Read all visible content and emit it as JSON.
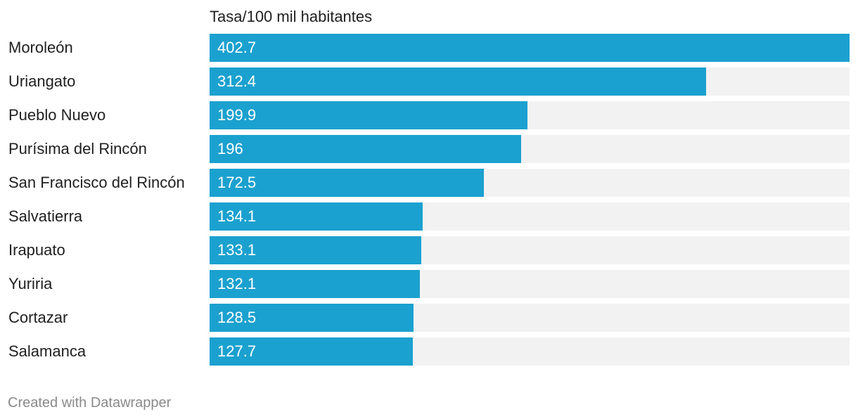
{
  "chart_data": {
    "type": "bar",
    "orientation": "horizontal",
    "title": "Tasa/100 mil habitantes",
    "categories": [
      "Moroleón",
      "Uriangato",
      "Pueblo Nuevo",
      "Purísima del Rincón",
      "San Francisco del Rincón",
      "Salvatierra",
      "Irapuato",
      "Yuriria",
      "Cortazar",
      "Salamanca"
    ],
    "values": [
      402.7,
      312.4,
      199.9,
      196,
      172.5,
      134.1,
      133.1,
      132.1,
      128.5,
      127.7
    ],
    "value_labels": [
      "402.7",
      "312.4",
      "199.9",
      "196",
      "172.5",
      "134.1",
      "133.1",
      "132.1",
      "128.5",
      "127.7"
    ],
    "xlim": [
      0,
      402.7
    ],
    "grid": false,
    "bar_color": "#1ba1cf",
    "track_color": "#f2f2f2"
  },
  "footer": {
    "credit": "Created with Datawrapper"
  }
}
